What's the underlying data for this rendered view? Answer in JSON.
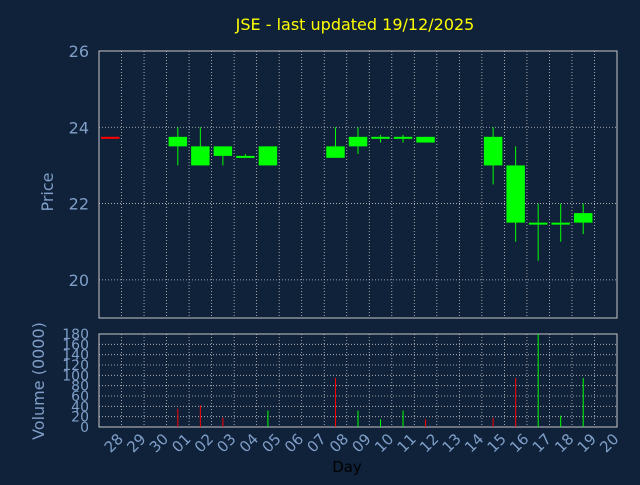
{
  "colors": {
    "background": "#10213a",
    "title": "#ffff00",
    "axis_label": "#7f9fc8",
    "tick_label": "#7f9fc8",
    "grid": "#c8c8c8",
    "up": "#00ff00",
    "down": "#ff0000"
  },
  "chart_data": [
    {
      "type": "candlestick",
      "title": "JSE - last updated 19/12/2025",
      "ylabel": "Price",
      "ylim": [
        19,
        26
      ],
      "yticks": [
        "20",
        "22",
        "24",
        "26"
      ],
      "categories": [
        "28",
        "29",
        "30",
        "01",
        "02",
        "03",
        "04",
        "05",
        "06",
        "07",
        "08",
        "09",
        "10",
        "11",
        "12",
        "13",
        "14",
        "15",
        "16",
        "17",
        "18",
        "19",
        "20"
      ],
      "candles": [
        {
          "day": "28",
          "open": 23.75,
          "high": 23.75,
          "low": 23.7,
          "close": 23.7
        },
        {
          "day": "01",
          "open": 23.5,
          "high": 24.0,
          "low": 23.0,
          "close": 23.75
        },
        {
          "day": "02",
          "open": 23.0,
          "high": 24.0,
          "low": 23.0,
          "close": 23.5
        },
        {
          "day": "03",
          "open": 23.25,
          "high": 23.5,
          "low": 23.0,
          "close": 23.5
        },
        {
          "day": "04",
          "open": 23.22,
          "high": 23.3,
          "low": 23.2,
          "close": 23.25
        },
        {
          "day": "05",
          "open": 23.0,
          "high": 23.5,
          "low": 23.0,
          "close": 23.5
        },
        {
          "day": "08",
          "open": 23.2,
          "high": 24.0,
          "low": 23.2,
          "close": 23.5
        },
        {
          "day": "09",
          "open": 23.5,
          "high": 24.0,
          "low": 23.3,
          "close": 23.75
        },
        {
          "day": "10",
          "open": 23.7,
          "high": 23.8,
          "low": 23.6,
          "close": 23.75
        },
        {
          "day": "11",
          "open": 23.7,
          "high": 23.8,
          "low": 23.6,
          "close": 23.75
        },
        {
          "day": "12",
          "open": 23.6,
          "high": 23.75,
          "low": 23.6,
          "close": 23.75
        },
        {
          "day": "15",
          "open": 23.0,
          "high": 24.0,
          "low": 22.5,
          "close": 23.75
        },
        {
          "day": "16",
          "open": 21.5,
          "high": 23.5,
          "low": 21.0,
          "close": 23.0
        },
        {
          "day": "17",
          "open": 21.5,
          "high": 22.0,
          "low": 20.5,
          "close": 21.5
        },
        {
          "day": "18",
          "open": 21.5,
          "high": 22.0,
          "low": 21.0,
          "close": 21.5
        },
        {
          "day": "19",
          "open": 21.5,
          "high": 22.0,
          "low": 21.2,
          "close": 21.75
        }
      ]
    },
    {
      "type": "bar",
      "xlabel": "Day",
      "ylabel": "Volume (0000)",
      "ylim": [
        0,
        180
      ],
      "yticks": [
        "0",
        "20",
        "40",
        "60",
        "80",
        "100",
        "120",
        "140",
        "160",
        "180"
      ],
      "categories": [
        "28",
        "29",
        "30",
        "01",
        "02",
        "03",
        "04",
        "05",
        "06",
        "07",
        "08",
        "09",
        "10",
        "11",
        "12",
        "13",
        "14",
        "15",
        "16",
        "17",
        "18",
        "19",
        "20"
      ],
      "bars": [
        {
          "day": "01",
          "value": 35,
          "direction": "down"
        },
        {
          "day": "02",
          "value": 42,
          "direction": "down"
        },
        {
          "day": "03",
          "value": 18,
          "direction": "down"
        },
        {
          "day": "05",
          "value": 32,
          "direction": "up"
        },
        {
          "day": "08",
          "value": 95,
          "direction": "down"
        },
        {
          "day": "09",
          "value": 32,
          "direction": "up"
        },
        {
          "day": "10",
          "value": 15,
          "direction": "up"
        },
        {
          "day": "11",
          "value": 32,
          "direction": "up"
        },
        {
          "day": "12",
          "value": 15,
          "direction": "down"
        },
        {
          "day": "15",
          "value": 18,
          "direction": "down"
        },
        {
          "day": "16",
          "value": 95,
          "direction": "down"
        },
        {
          "day": "17",
          "value": 180,
          "direction": "up"
        },
        {
          "day": "18",
          "value": 22,
          "direction": "up"
        },
        {
          "day": "19",
          "value": 95,
          "direction": "up"
        }
      ]
    }
  ]
}
